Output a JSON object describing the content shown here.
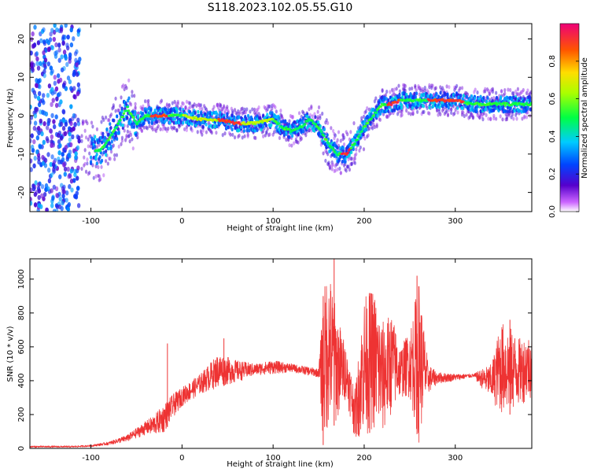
{
  "title": "S118.2023.102.05.55.G10",
  "chart_data": [
    {
      "type": "heatmap",
      "xlabel": "Height of straight line (km)",
      "ylabel": "Frequency (Hz)",
      "xlim": [
        -167,
        384
      ],
      "ylim": [
        -25,
        24
      ],
      "x_ticks": [
        "-100",
        "0",
        "100",
        "200",
        "300"
      ],
      "y_ticks": [
        "20",
        "10",
        "0",
        "-10",
        "-20"
      ],
      "colorbar": {
        "label": "Normalized spectral amplitude",
        "range": [
          0.0,
          1.0
        ],
        "ticks": [
          "0.0",
          "0.2",
          "0.4",
          "0.6",
          "0.8"
        ]
      },
      "ridge": {
        "name": "dominant frequency",
        "x": [
          -90,
          -80,
          -70,
          -60,
          -50,
          -40,
          -30,
          -20,
          -10,
          0,
          20,
          40,
          60,
          80,
          100,
          110,
          120,
          130,
          140,
          150,
          160,
          170,
          180,
          190,
          200,
          210,
          220,
          230,
          240,
          260,
          280,
          300,
          320,
          340,
          360,
          380
        ],
        "y": [
          -9,
          -6,
          -2,
          2,
          -2,
          0,
          0,
          0,
          0,
          0,
          -1,
          -1,
          -2,
          -2,
          -1,
          -3,
          -4,
          -3,
          -1,
          -3,
          -7,
          -10,
          -10,
          -7,
          -3,
          0,
          3,
          3,
          4,
          4,
          4,
          4,
          3,
          3,
          3,
          3
        ]
      }
    },
    {
      "type": "line",
      "xlabel": "Height of straight line (km)",
      "ylabel": "SNR (10 * v/v)",
      "xlim": [
        -167,
        384
      ],
      "ylim": [
        0,
        1120
      ],
      "x_ticks": [
        "-100",
        "0",
        "100",
        "200",
        "300"
      ],
      "y_ticks": [
        "0",
        "200",
        "400",
        "600",
        "800",
        "1000"
      ],
      "series": [
        {
          "color": "#ee3333",
          "envelope": {
            "x": [
              -167,
              -120,
              -100,
              -80,
              -60,
              -50,
              -40,
              -30,
              -20,
              -10,
              0,
              20,
              40,
              60,
              80,
              100,
              120,
              140,
              150,
              155,
              160,
              170,
              180,
              190,
              200,
              210,
              220,
              230,
              240,
              250,
              260,
              270,
              280,
              300,
              320,
              340,
              350,
              360,
              370,
              384
            ],
            "low": [
              5,
              5,
              10,
              20,
              40,
              60,
              80,
              80,
              90,
              180,
              250,
              320,
              360,
              390,
              430,
              440,
              450,
              430,
              420,
              20,
              100,
              150,
              300,
              50,
              80,
              100,
              60,
              200,
              300,
              300,
              30,
              320,
              380,
              400,
              420,
              280,
              200,
              200,
              250,
              300
            ],
            "high": [
              15,
              15,
              20,
              40,
              80,
              120,
              160,
              200,
              260,
              320,
              360,
              440,
              560,
              520,
              500,
              520,
              500,
              480,
              470,
              900,
              1100,
              800,
              600,
              350,
              900,
              950,
              750,
              800,
              600,
              700,
              1000,
              500,
              450,
              440,
              440,
              500,
              750,
              720,
              650,
              680
            ]
          },
          "peaks": [
            {
              "x": 167,
              "y": 1120
            },
            {
              "x": 258,
              "y": 1020
            },
            {
              "x": 155,
              "y": 900
            },
            {
              "x": 206,
              "y": 900
            },
            {
              "x": 360,
              "y": 760
            },
            {
              "x": 46,
              "y": 650
            },
            {
              "x": -16,
              "y": 620
            }
          ]
        }
      ]
    }
  ]
}
